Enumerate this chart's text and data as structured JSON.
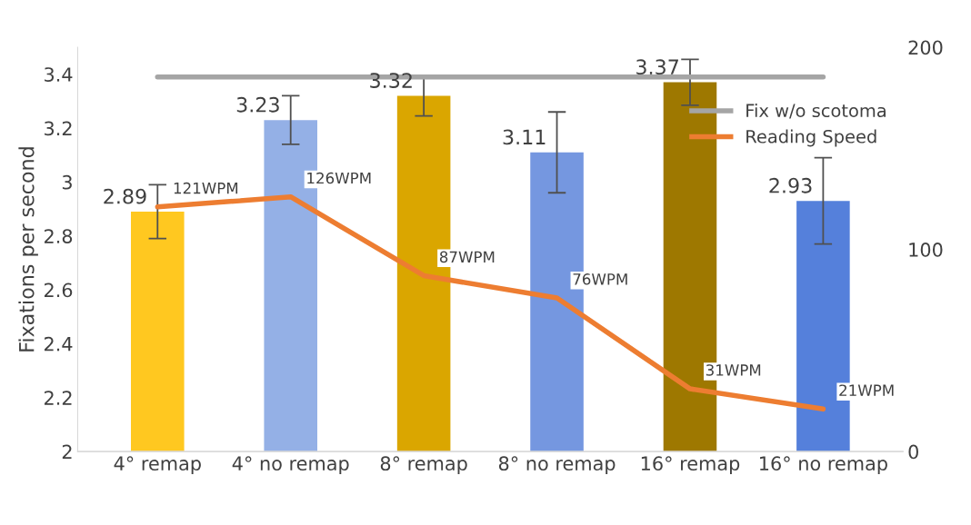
{
  "chart_data": {
    "type": "bar",
    "ylabel": "Fixations per second",
    "categories": [
      "4° remap",
      "4° no remap",
      "8° remap",
      "8° no remap",
      "16° remap",
      "16° no remap"
    ],
    "series": [
      {
        "colors": [
          "#ffc820",
          "#94b0e6",
          "#daa600",
          "#7597e0",
          "#9e7800",
          "#5580db"
        ],
        "values": [
          2.89,
          3.23,
          3.32,
          3.11,
          3.37,
          2.93
        ],
        "errors": [
          0.1,
          0.09,
          0.075,
          0.15,
          0.085,
          0.16
        ],
        "data_labels": true
      },
      {
        "type": "line",
        "name": "Fix w/o scotoma",
        "color": "#a5a5a5",
        "values": [
          3.39,
          3.39,
          3.39,
          3.39,
          3.39,
          3.39
        ]
      },
      {
        "type": "line",
        "name": "Reading Speed",
        "color": "#ed7d31",
        "axis": "y2",
        "values": [
          121,
          126,
          87,
          76,
          31,
          21
        ],
        "value_labels": [
          "121WPM",
          "126WPM",
          "87WPM",
          "76WPM",
          "31WPM",
          "21WPM"
        ]
      }
    ],
    "ylim": [
      2,
      3.5
    ],
    "yticks": [
      2,
      2.2,
      2.4,
      2.6,
      2.8,
      3,
      3.2,
      3.4
    ],
    "y2lim": [
      0,
      200
    ],
    "y2ticks": [
      0,
      100,
      200
    ],
    "grid": false,
    "legend": "top right"
  }
}
